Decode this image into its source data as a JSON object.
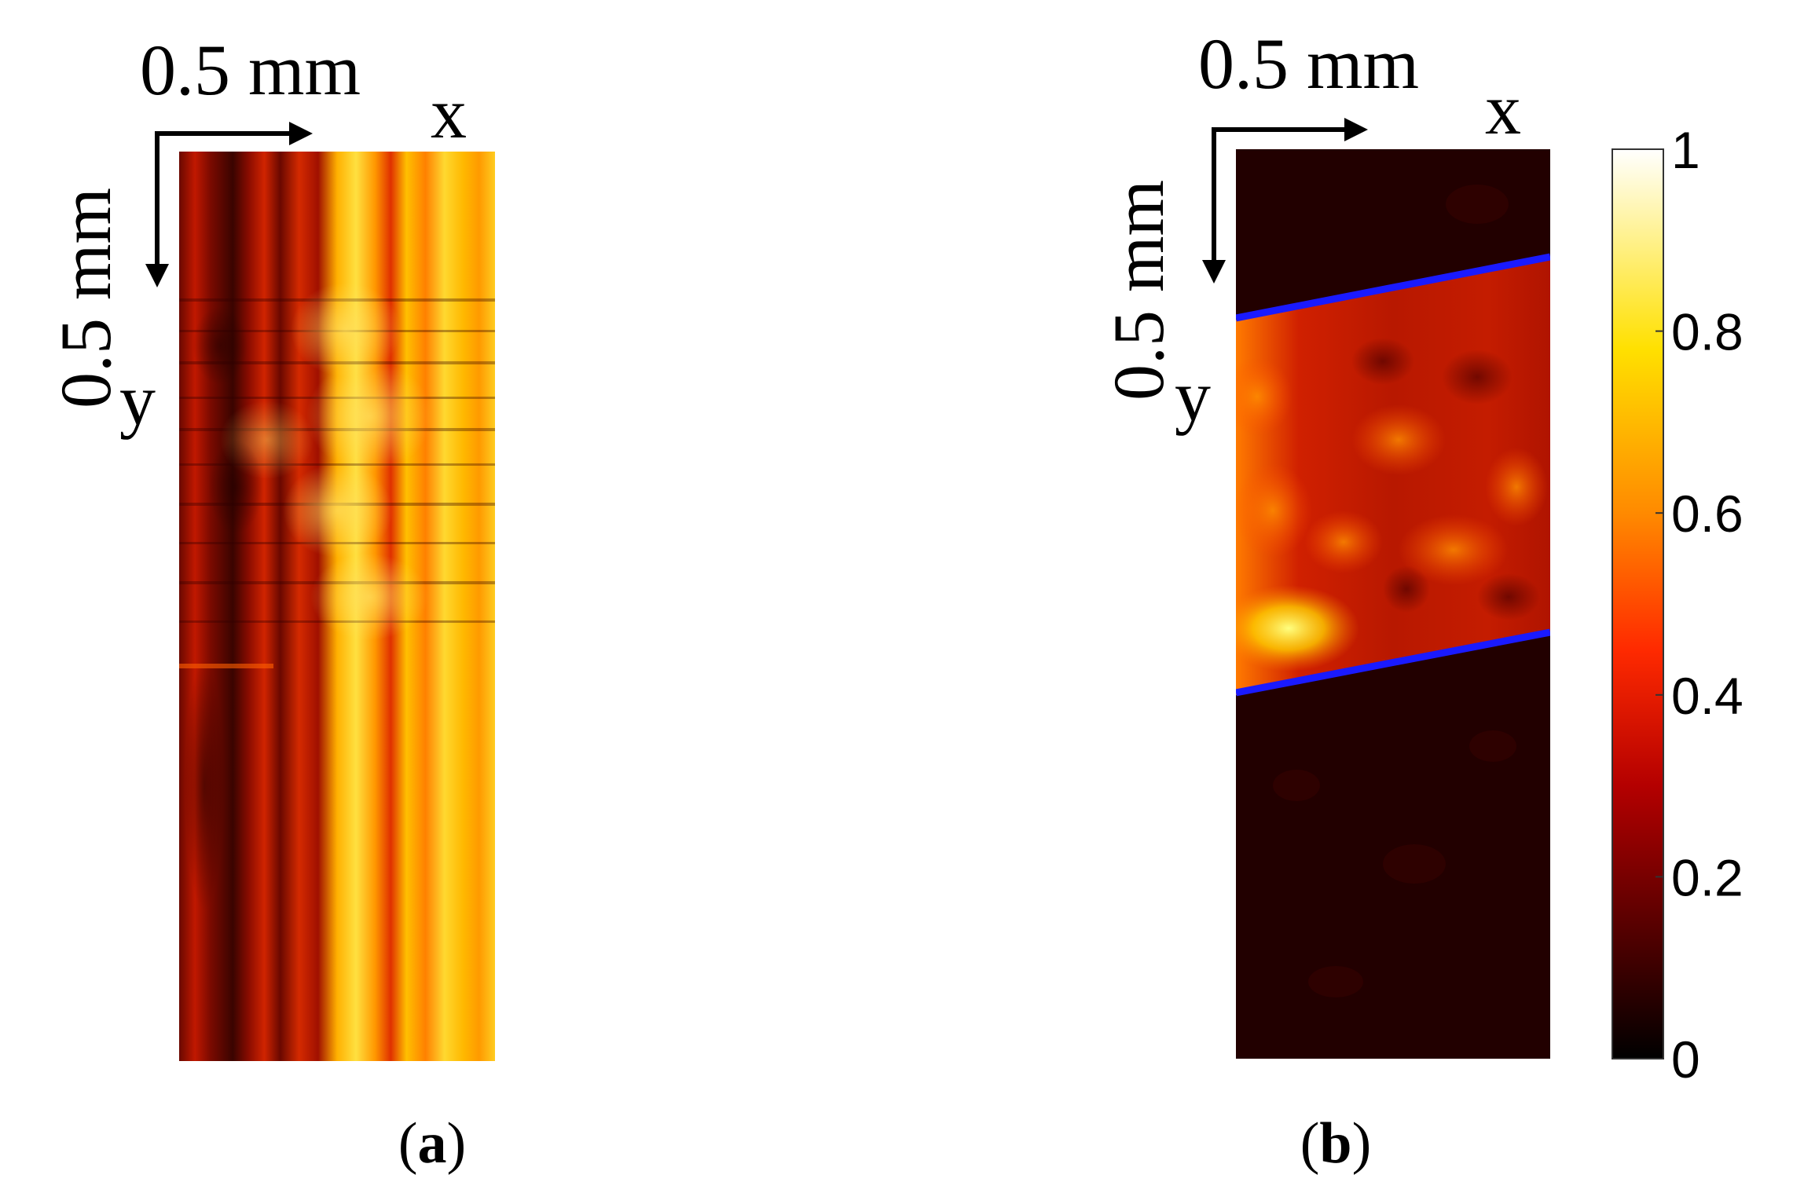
{
  "panels": [
    {
      "id": "a",
      "caption_open": "(",
      "caption_letter": "a",
      "caption_close": ")",
      "scale_label_x": "0.5 mm",
      "scale_label_y": "0.5 mm",
      "axis_x": "x",
      "axis_y": "y"
    },
    {
      "id": "b",
      "caption_open": "(",
      "caption_letter": "b",
      "caption_close": ")",
      "scale_label_x": "0.5 mm",
      "scale_label_y": "0.5 mm",
      "axis_x": "x",
      "axis_y": "y",
      "boundary_line_color": "#1a1aff"
    }
  ],
  "colorbar": {
    "ticks": [
      "0",
      "0.2",
      "0.4",
      "0.6",
      "0.8",
      "1"
    ],
    "range": [
      0,
      1
    ],
    "colormap": "hot",
    "colors": [
      "#000000",
      "#5a0000",
      "#b40000",
      "#ff2a00",
      "#ff8a00",
      "#ffe000",
      "#ffffff"
    ]
  }
}
